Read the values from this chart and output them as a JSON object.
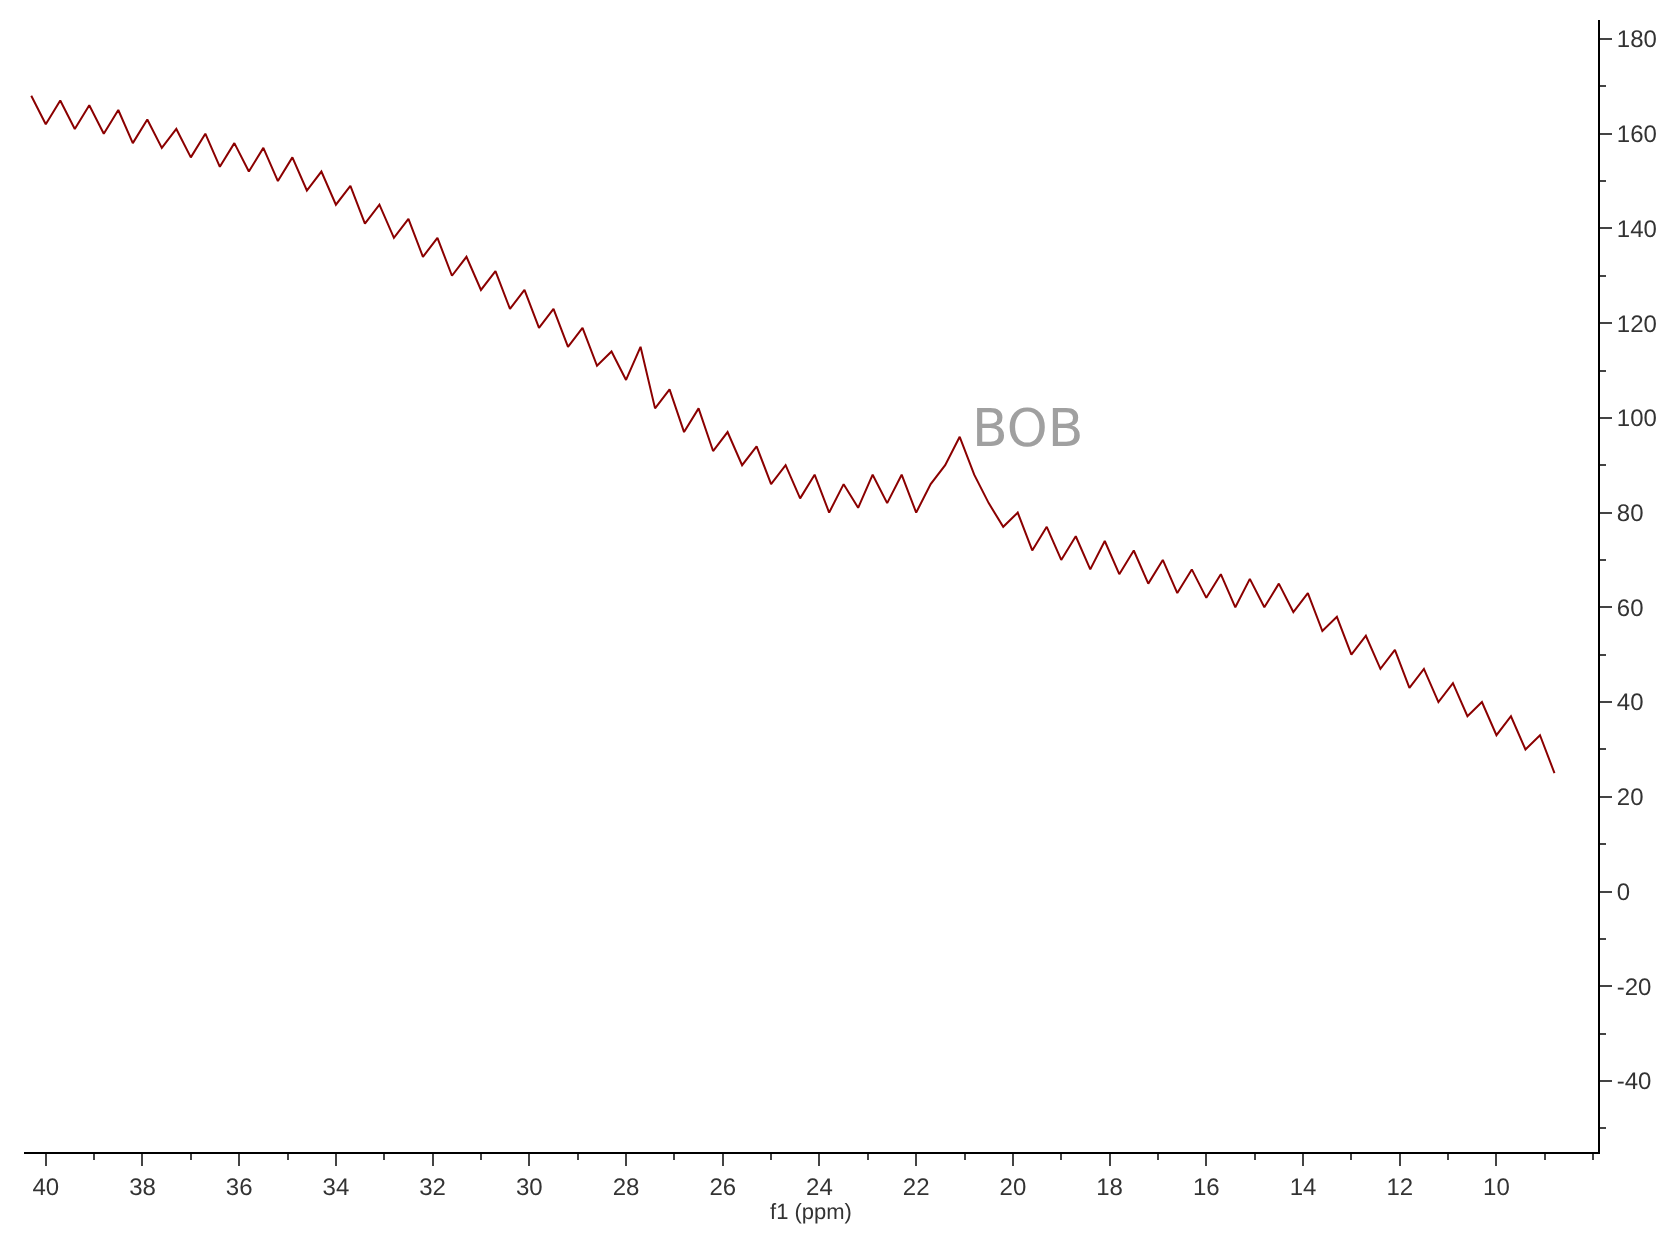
{
  "chart_data": {
    "type": "line",
    "xlabel": "f1 (ppm)",
    "x": [
      40.3,
      40.0,
      39.7,
      39.4,
      39.1,
      38.8,
      38.5,
      38.2,
      37.9,
      37.6,
      37.3,
      37.0,
      36.7,
      36.4,
      36.1,
      35.8,
      35.5,
      35.2,
      34.9,
      34.6,
      34.3,
      34.0,
      33.7,
      33.4,
      33.1,
      32.8,
      32.5,
      32.2,
      31.9,
      31.6,
      31.3,
      31.0,
      30.7,
      30.4,
      30.1,
      29.8,
      29.5,
      29.2,
      28.9,
      28.6,
      28.3,
      28.0,
      27.7,
      27.4,
      27.1,
      26.8,
      26.5,
      26.2,
      25.9,
      25.6,
      25.3,
      25.0,
      24.7,
      24.4,
      24.1,
      23.8,
      23.5,
      23.2,
      22.9,
      22.6,
      22.3,
      22.0,
      21.7,
      21.4,
      21.1,
      20.8,
      20.5,
      20.2,
      19.9,
      19.6,
      19.3,
      19.0,
      18.7,
      18.4,
      18.1,
      17.8,
      17.5,
      17.2,
      16.9,
      16.6,
      16.3,
      16.0,
      15.7,
      15.4,
      15.1,
      14.8,
      14.5,
      14.2,
      13.9,
      13.6,
      13.3,
      13.0,
      12.7,
      12.4,
      12.1,
      11.8,
      11.5,
      11.2,
      10.9,
      10.6,
      10.3,
      10.0,
      9.7,
      9.4,
      9.1,
      8.8
    ],
    "series": [
      {
        "color": "#8b0000",
        "values": [
          168,
          162,
          167,
          161,
          166,
          160,
          165,
          158,
          163,
          157,
          161,
          155,
          160,
          153,
          158,
          152,
          157,
          150,
          155,
          148,
          152,
          145,
          149,
          141,
          145,
          138,
          142,
          134,
          138,
          130,
          134,
          127,
          131,
          123,
          127,
          119,
          123,
          115,
          119,
          111,
          114,
          108,
          115,
          102,
          106,
          97,
          102,
          93,
          97,
          90,
          94,
          86,
          90,
          83,
          88,
          80,
          86,
          81,
          88,
          82,
          88,
          80,
          86,
          90,
          96,
          88,
          82,
          77,
          80,
          72,
          77,
          70,
          75,
          68,
          74,
          67,
          72,
          65,
          70,
          63,
          68,
          62,
          67,
          60,
          66,
          60,
          65,
          59,
          63,
          55,
          58,
          50,
          54,
          47,
          51,
          43,
          47,
          40,
          44,
          37,
          40,
          33,
          37,
          30,
          33,
          25
        ]
      }
    ],
    "annotations": [
      {
        "text": "BOB",
        "x": 21.1,
        "y": 96
      }
    ],
    "xlim": [
      40.45,
      7.9
    ],
    "xticks": [
      40,
      38,
      36,
      34,
      32,
      30,
      28,
      26,
      24,
      22,
      20,
      18,
      16,
      14,
      12,
      10
    ],
    "ylim": [
      -55,
      184
    ],
    "yticks": [
      -40,
      -20,
      0,
      20,
      40,
      60,
      80,
      100,
      120,
      140,
      160,
      180
    ],
    "marker": "none",
    "line_style": "solid"
  }
}
